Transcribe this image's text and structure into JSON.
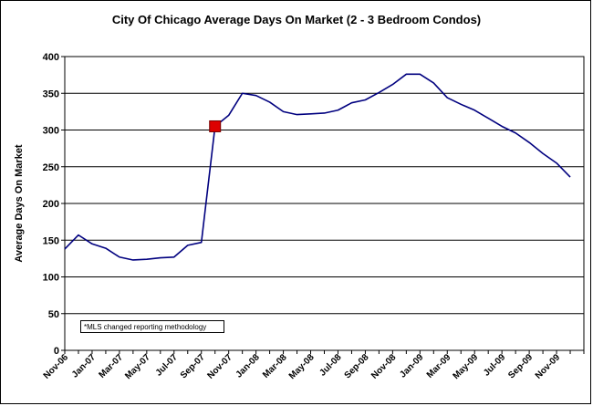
{
  "chart_data": {
    "type": "line",
    "title": "City Of Chicago Average Days On Market (2 - 3 Bedroom Condos)",
    "xlabel": "",
    "ylabel": "Average Days On Market",
    "ylim": [
      0,
      400
    ],
    "yticks": [
      "0",
      "50",
      "100",
      "150",
      "200",
      "250",
      "300",
      "350",
      "400"
    ],
    "grid": "horizontal",
    "legend": "none",
    "line_color": "#00007f",
    "marker_color": "#dd0000",
    "x_tick_labels": [
      "Nov-06",
      "Jan-07",
      "Mar-07",
      "May-07",
      "Jul-07",
      "Sep-07",
      "Nov-07",
      "Jan-08",
      "Mar-08",
      "May-08",
      "Jul-08",
      "Sep-08",
      "Nov-08",
      "Jan-09",
      "Mar-09",
      "May-09",
      "Jul-09",
      "Sep-09",
      "Nov-09"
    ],
    "x": [
      "Nov-06",
      "Dec-06",
      "Jan-07",
      "Feb-07",
      "Mar-07",
      "Apr-07",
      "May-07",
      "Jun-07",
      "Jul-07",
      "Aug-07",
      "Sep-07",
      "Oct-07",
      "Nov-07",
      "Dec-07",
      "Jan-08",
      "Feb-08",
      "Mar-08",
      "Apr-08",
      "May-08",
      "Jun-08",
      "Jul-08",
      "Aug-08",
      "Sep-08",
      "Oct-08",
      "Nov-08",
      "Dec-08",
      "Jan-09",
      "Feb-09",
      "Mar-09",
      "Apr-09",
      "May-09",
      "Jun-09",
      "Jul-09",
      "Aug-09",
      "Sep-09",
      "Oct-09",
      "Nov-09",
      "Dec-09"
    ],
    "values": [
      138,
      157,
      145,
      139,
      127,
      123,
      124,
      126,
      127,
      143,
      147,
      305,
      320,
      350,
      347,
      338,
      325,
      321,
      322,
      323,
      327,
      337,
      341,
      351,
      362,
      376,
      376,
      364,
      344,
      335,
      327,
      316,
      305,
      296,
      283,
      268,
      255,
      236
    ],
    "highlight": {
      "x": "Oct-07",
      "value": 305
    },
    "annotation": "*MLS changed reporting methodology"
  }
}
